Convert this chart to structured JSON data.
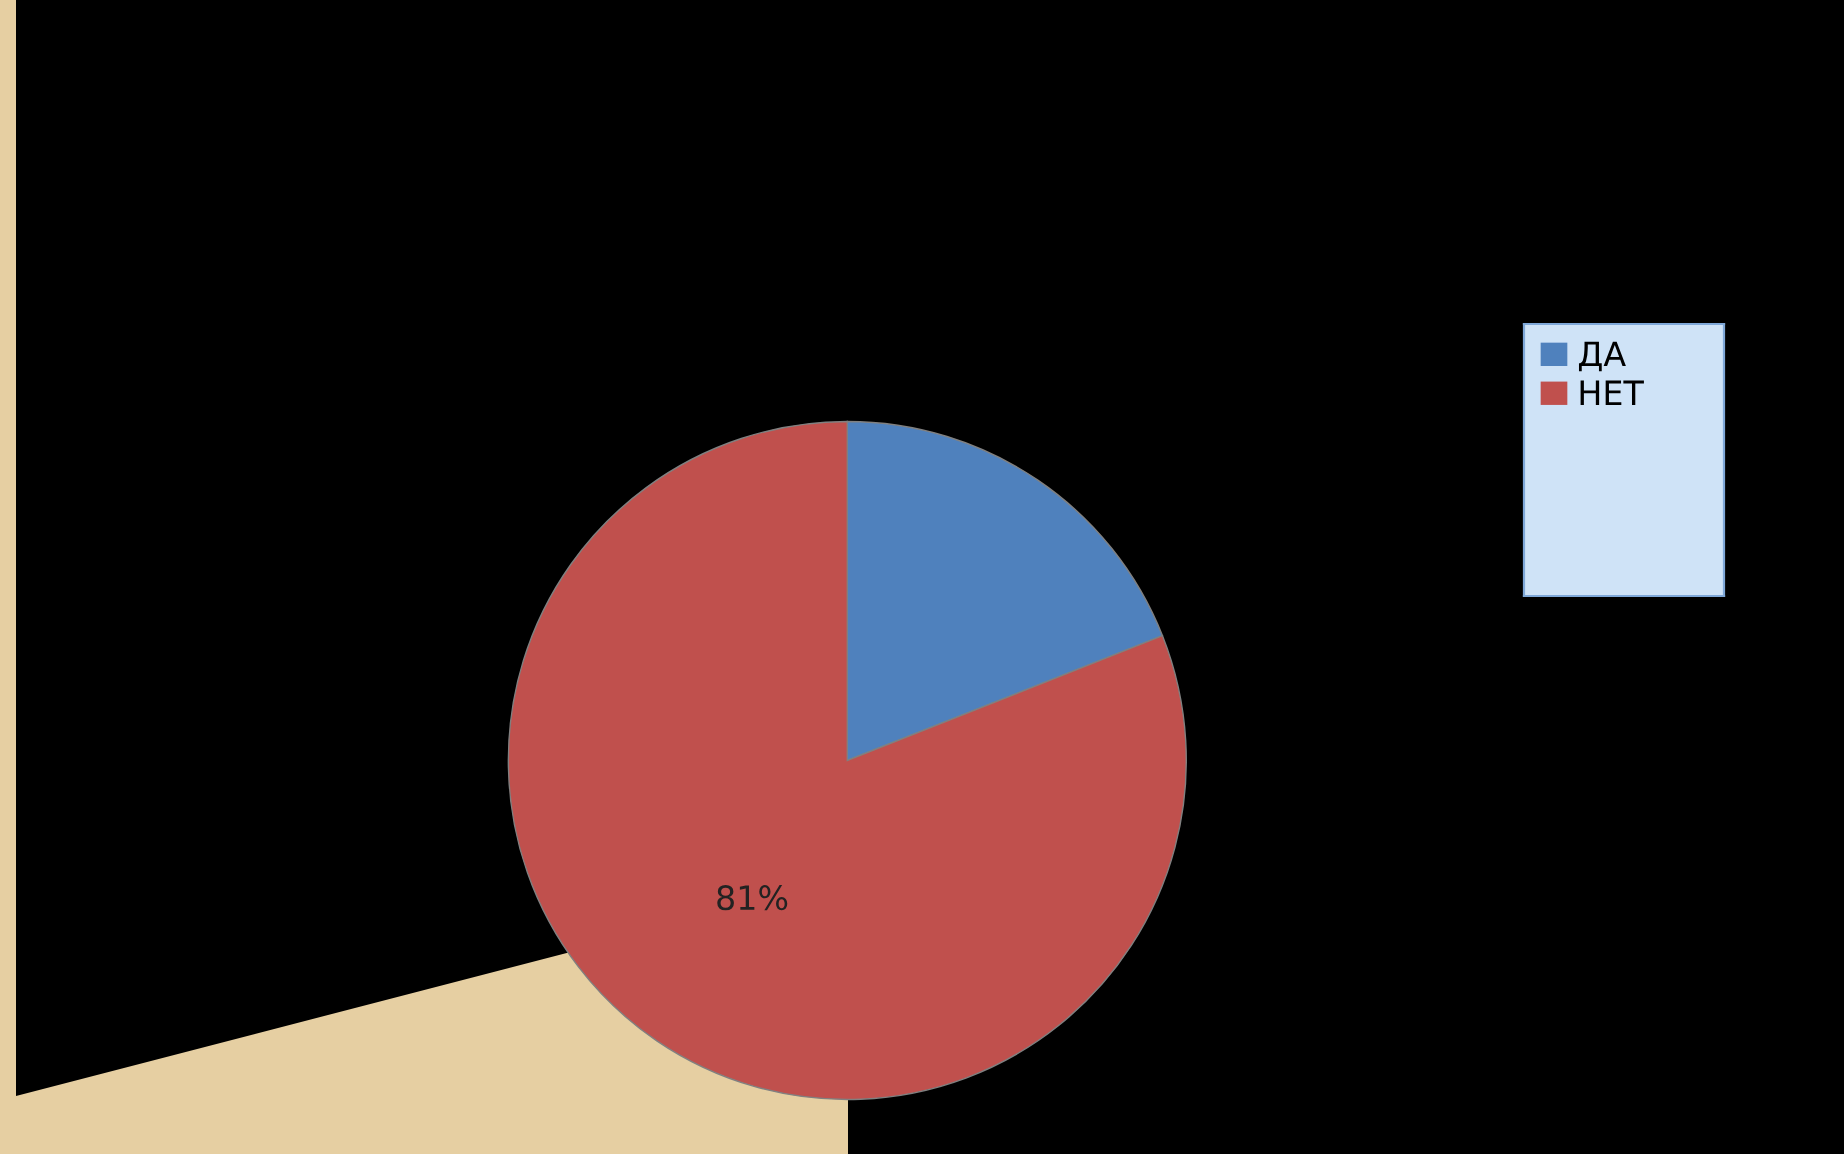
{
  "chart_data": {
    "type": "pie",
    "categories": [
      "ДА",
      "НЕТ"
    ],
    "values": [
      19,
      81
    ],
    "colors": [
      "#4f81bd",
      "#c0504d"
    ],
    "value_labels": [
      null,
      "81%"
    ],
    "legend": "top right"
  }
}
